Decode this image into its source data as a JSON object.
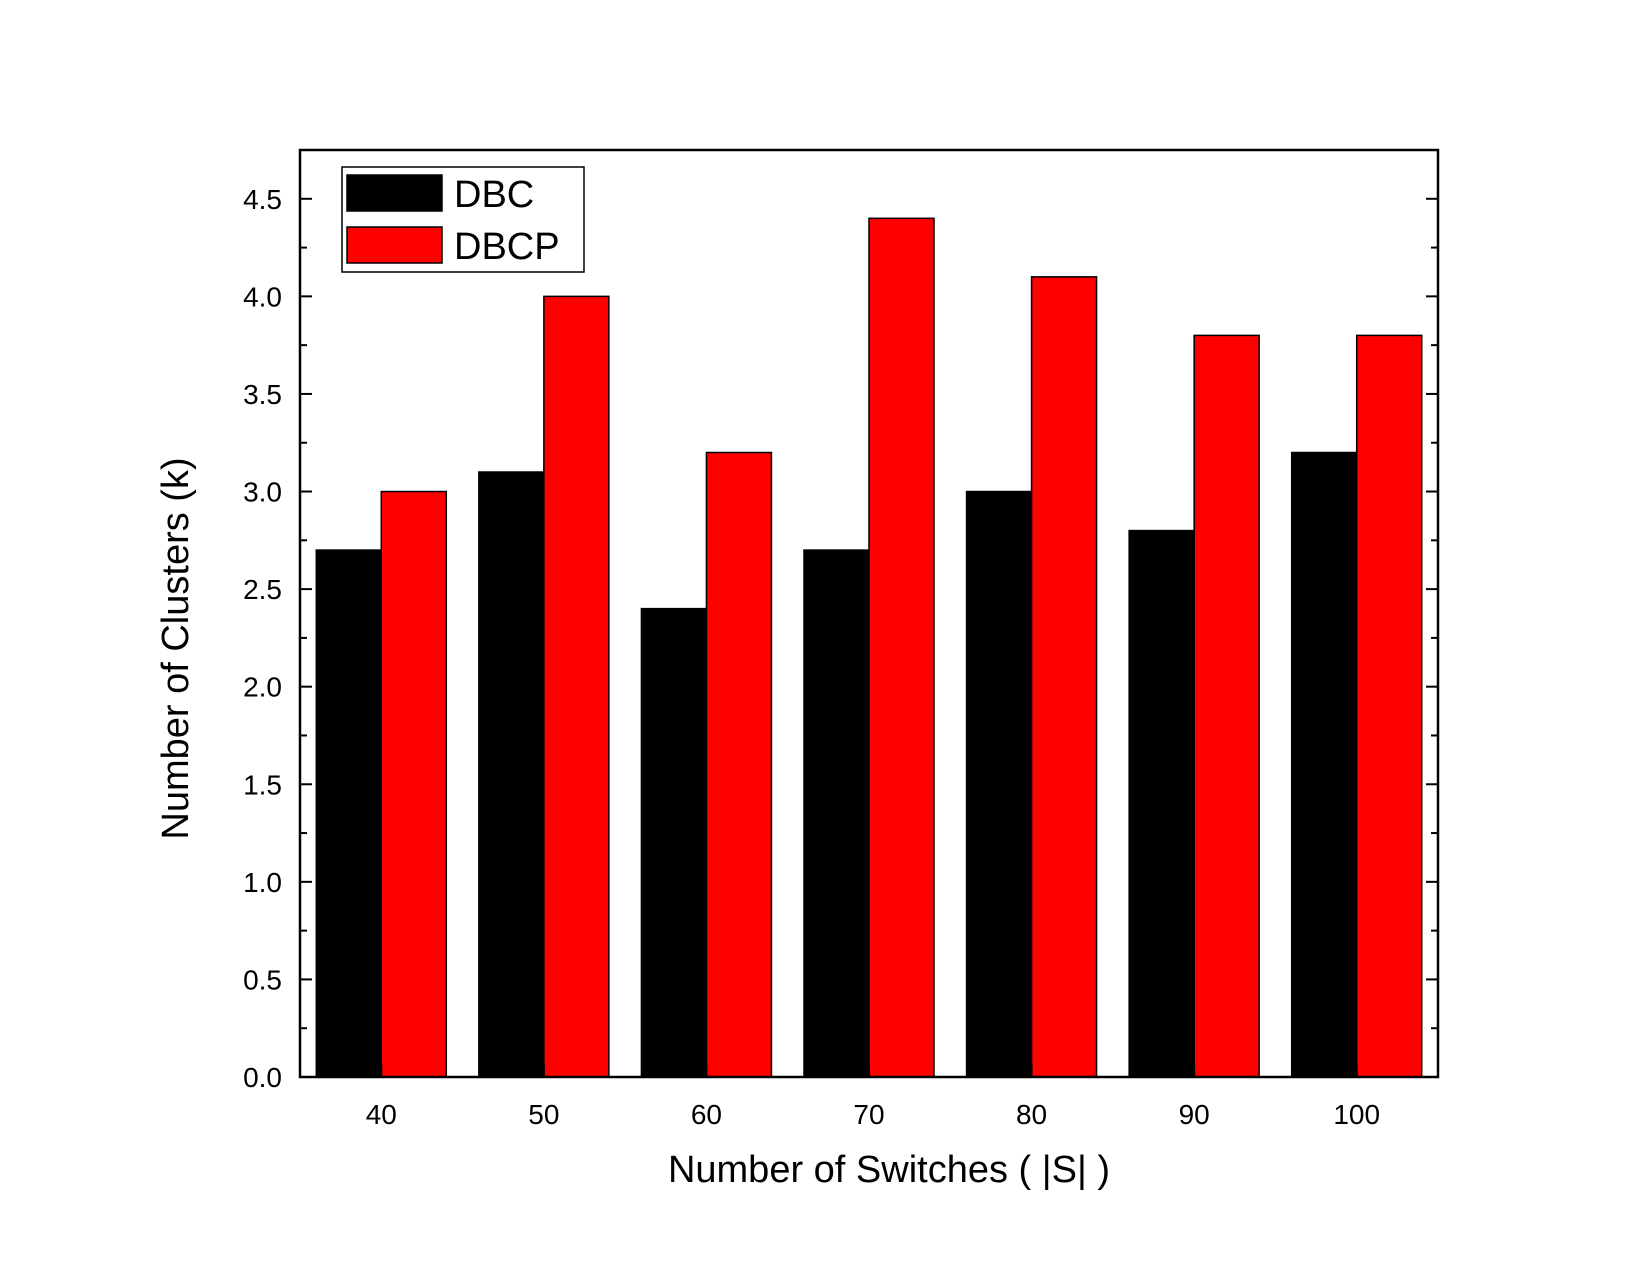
{
  "chart_data": {
    "type": "bar",
    "categories": [
      "40",
      "50",
      "60",
      "70",
      "80",
      "90",
      "100"
    ],
    "series": [
      {
        "name": "DBC",
        "color": "#000000",
        "values": [
          2.7,
          3.1,
          2.4,
          2.7,
          3.0,
          2.8,
          3.2
        ]
      },
      {
        "name": "DBCP",
        "color": "#ff0000",
        "values": [
          3.0,
          4.0,
          3.2,
          4.4,
          4.1,
          3.8,
          3.8
        ]
      }
    ],
    "title": "",
    "xlabel": "Number of Switches ( |S| )",
    "ylabel": "Number of Clusters (k)",
    "ylim": [
      0,
      4.75
    ],
    "yticks": [
      "0.0",
      "0.5",
      "1.0",
      "1.5",
      "2.0",
      "2.5",
      "3.0",
      "3.5",
      "4.0",
      "4.5"
    ],
    "legend_position": "top-left",
    "grid": false
  }
}
